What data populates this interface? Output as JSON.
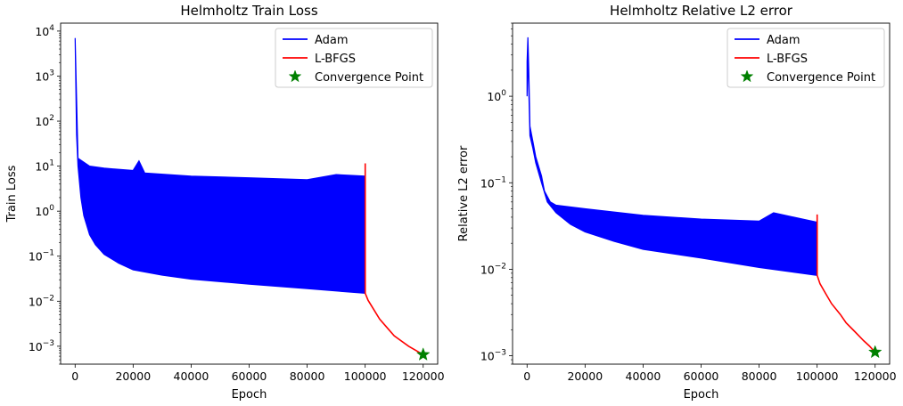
{
  "chart_data": [
    {
      "type": "line",
      "title": "Helmholtz Train Loss",
      "xlabel": "Epoch",
      "ylabel": "Train Loss",
      "yscale": "log",
      "xlim": [
        -5000,
        125000
      ],
      "ylim": [
        0.0004,
        15000
      ],
      "xticks": [
        0,
        20000,
        40000,
        60000,
        80000,
        100000,
        120000
      ],
      "yticks": [
        {
          "value": 0.001,
          "base": "10",
          "exp": "−3"
        },
        {
          "value": 0.01,
          "base": "10",
          "exp": "−2"
        },
        {
          "value": 0.1,
          "base": "10",
          "exp": "−1"
        },
        {
          "value": 1,
          "base": "10",
          "exp": "0"
        },
        {
          "value": 10,
          "base": "10",
          "exp": "1"
        },
        {
          "value": 100,
          "base": "10",
          "exp": "2"
        },
        {
          "value": 1000,
          "base": "10",
          "exp": "3"
        },
        {
          "value": 10000,
          "base": "10",
          "exp": "4"
        }
      ],
      "legend_position": "top-right",
      "series": [
        {
          "name": "Adam",
          "color": "#0000ff",
          "kind": "band",
          "lower": {
            "x": [
              0,
              500,
              1000,
              2000,
              3000,
              5000,
              7000,
              10000,
              15000,
              20000,
              30000,
              40000,
              60000,
              80000,
              100000
            ],
            "y": [
              7000,
              50,
              10,
              2,
              0.8,
              0.3,
              0.18,
              0.11,
              0.07,
              0.05,
              0.038,
              0.031,
              0.024,
              0.019,
              0.015
            ]
          },
          "upper": {
            "x": [
              1000,
              5000,
              10000,
              20000,
              22000,
              24000,
              40000,
              60000,
              80000,
              90000,
              100000
            ],
            "y": [
              15,
              10,
              9,
              8,
              13,
              7,
              6,
              5.5,
              5,
              6.5,
              6
            ]
          }
        },
        {
          "name": "L-BFGS",
          "color": "#ff0000",
          "kind": "line",
          "x": [
            100000,
            100000,
            100000,
            101000,
            103000,
            105000,
            108000,
            110000,
            115000,
            120000
          ],
          "y": [
            0.015,
            11.5,
            0.015,
            0.0105,
            0.0065,
            0.004,
            0.0024,
            0.0017,
            0.001,
            0.00065
          ]
        },
        {
          "name": "Convergence Point",
          "color": "#008000",
          "kind": "marker",
          "x": [
            120000
          ],
          "y": [
            0.00065
          ]
        }
      ]
    },
    {
      "type": "line",
      "title": "Helmholtz Relative L2 error",
      "xlabel": "Epoch",
      "ylabel": "Relative L2 error",
      "yscale": "log",
      "xlim": [
        -5000,
        125000
      ],
      "ylim": [
        0.0008,
        7
      ],
      "xticks": [
        0,
        20000,
        40000,
        60000,
        80000,
        100000,
        120000
      ],
      "yticks": [
        {
          "value": 0.001,
          "base": "10",
          "exp": "−3"
        },
        {
          "value": 0.01,
          "base": "10",
          "exp": "−2"
        },
        {
          "value": 0.1,
          "base": "10",
          "exp": "−1"
        },
        {
          "value": 1,
          "base": "10",
          "exp": "0"
        }
      ],
      "legend_position": "top-right",
      "series": [
        {
          "name": "Adam",
          "color": "#0000ff",
          "kind": "band",
          "lower": {
            "x": [
              0,
              300,
              600,
              1000,
              2000,
              3000,
              5000,
              7000,
              10000,
              15000,
              20000,
              30000,
              40000,
              60000,
              80000,
              100000
            ],
            "y": [
              1.0,
              3.5,
              1.2,
              0.35,
              0.25,
              0.17,
              0.1,
              0.06,
              0.045,
              0.033,
              0.027,
              0.021,
              0.017,
              0.0135,
              0.0105,
              0.0085
            ]
          },
          "upper": {
            "x": [
              0,
              300,
              600,
              1000,
              2000,
              3000,
              5000,
              6000,
              8000,
              10000,
              20000,
              40000,
              60000,
              80000,
              85000,
              100000
            ],
            "y": [
              2.5,
              4.8,
              2.0,
              0.45,
              0.3,
              0.2,
              0.12,
              0.08,
              0.06,
              0.055,
              0.05,
              0.042,
              0.038,
              0.036,
              0.045,
              0.035
            ]
          }
        },
        {
          "name": "L-BFGS",
          "color": "#ff0000",
          "kind": "line",
          "x": [
            100000,
            100000,
            100000,
            101000,
            103000,
            105000,
            108000,
            110000,
            113000,
            116000,
            118000,
            120000
          ],
          "y": [
            0.0085,
            0.043,
            0.0085,
            0.0068,
            0.0052,
            0.004,
            0.003,
            0.0024,
            0.0019,
            0.0015,
            0.0013,
            0.0011
          ]
        },
        {
          "name": "Convergence Point",
          "color": "#008000",
          "kind": "marker",
          "x": [
            120000
          ],
          "y": [
            0.0011
          ]
        }
      ]
    }
  ]
}
